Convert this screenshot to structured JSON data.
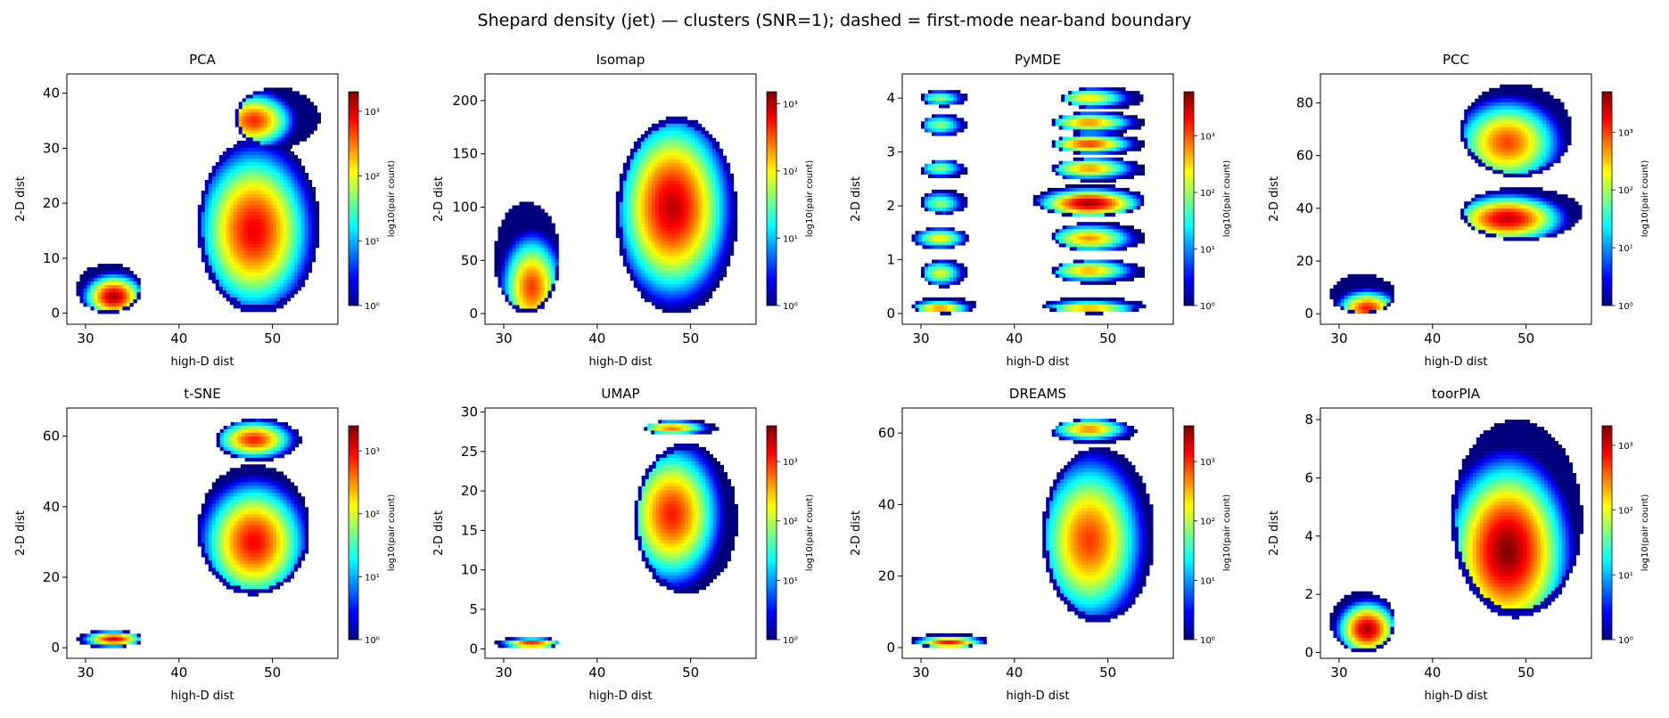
{
  "figure": {
    "suptitle": "Shepard density (jet) — clusters (SNR=1); dashed = first-mode near-band boundary"
  },
  "colormap": {
    "name": "jet",
    "stops": [
      "#00007f",
      "#0000ff",
      "#007fff",
      "#00ffff",
      "#7fff7f",
      "#ffff00",
      "#ff7f00",
      "#ff0000",
      "#7f0000"
    ]
  },
  "chart_data": [
    {
      "type": "heatmap",
      "title": "PCA",
      "xlabel": "high-D dist",
      "ylabel": "2-D dist",
      "colorbar_label": "log10(pair count)",
      "color_scale": "log",
      "xlim": [
        28,
        57
      ],
      "xticks": [
        30,
        40,
        50
      ],
      "ylim": [
        -2,
        43.5
      ],
      "yticks": [
        0,
        10,
        20,
        30,
        40
      ],
      "cbar_max": 2000,
      "cbar_ticks": [
        {
          "label": "10⁰",
          "value": 1
        },
        {
          "label": "10¹",
          "value": 10
        },
        {
          "label": "10²",
          "value": 100
        },
        {
          "label": "10³",
          "value": 1000
        }
      ],
      "clusters": [
        {
          "x_range": [
            29,
            36
          ],
          "y_range": [
            0,
            9
          ],
          "peak": [
            33,
            3
          ],
          "peak_count": 1500
        },
        {
          "x_range": [
            42,
            55
          ],
          "y_range": [
            0,
            32
          ],
          "peak": [
            48,
            15
          ],
          "peak_count": 900
        },
        {
          "x_range": [
            46,
            55
          ],
          "y_range": [
            30,
            41
          ],
          "peak": [
            48,
            35
          ],
          "peak_count": 600
        }
      ]
    },
    {
      "type": "heatmap",
      "title": "Isomap",
      "xlabel": "high-D dist",
      "ylabel": "2-D dist",
      "colorbar_label": "log10(pair count)",
      "color_scale": "log",
      "xlim": [
        28,
        57
      ],
      "xticks": [
        30,
        40,
        50
      ],
      "ylim": [
        -10,
        225
      ],
      "yticks": [
        0,
        50,
        100,
        150,
        200
      ],
      "cbar_max": 1500,
      "cbar_ticks": [
        {
          "label": "10⁰",
          "value": 1
        },
        {
          "label": "10¹",
          "value": 10
        },
        {
          "label": "10²",
          "value": 100
        },
        {
          "label": "10³",
          "value": 1000
        }
      ],
      "clusters": [
        {
          "x_range": [
            29,
            36
          ],
          "y_range": [
            0,
            105
          ],
          "peak": [
            33,
            25
          ],
          "peak_count": 400
        },
        {
          "x_range": [
            42,
            55
          ],
          "y_range": [
            0,
            185
          ],
          "peak": [
            48,
            100
          ],
          "peak_count": 1000
        }
      ]
    },
    {
      "type": "heatmap",
      "title": "PyMDE",
      "xlabel": "high-D dist",
      "ylabel": "2-D dist",
      "colorbar_label": "log10(pair count)",
      "color_scale": "log",
      "xlim": [
        28,
        57
      ],
      "xticks": [
        30,
        40,
        50
      ],
      "ylim": [
        -0.2,
        4.45
      ],
      "yticks": [
        0,
        1,
        2,
        3,
        4
      ],
      "cbar_max": 6000,
      "cbar_ticks": [
        {
          "label": "10⁰",
          "value": 1
        },
        {
          "label": "10¹",
          "value": 10
        },
        {
          "label": "10²",
          "value": 100
        },
        {
          "label": "10³",
          "value": 1000
        }
      ],
      "clusters": [
        {
          "x_range": [
            29,
            36
          ],
          "y_range": [
            0,
            0.3
          ],
          "peak": [
            32,
            0.1
          ],
          "peak_count": 800
        },
        {
          "x_range": [
            30,
            35
          ],
          "y_range": [
            0.5,
            1.0
          ],
          "peak": [
            32,
            0.75
          ],
          "peak_count": 200
        },
        {
          "x_range": [
            29,
            35
          ],
          "y_range": [
            1.2,
            1.6
          ],
          "peak": [
            32,
            1.4
          ],
          "peak_count": 300
        },
        {
          "x_range": [
            30,
            35
          ],
          "y_range": [
            1.85,
            2.3
          ],
          "peak": [
            32,
            2.05
          ],
          "peak_count": 100
        },
        {
          "x_range": [
            30,
            35
          ],
          "y_range": [
            2.5,
            2.85
          ],
          "peak": [
            32,
            2.7
          ],
          "peak_count": 100
        },
        {
          "x_range": [
            30,
            35
          ],
          "y_range": [
            3.3,
            3.7
          ],
          "peak": [
            32,
            3.5
          ],
          "peak_count": 100
        },
        {
          "x_range": [
            30,
            35
          ],
          "y_range": [
            3.85,
            4.15
          ],
          "peak": [
            32,
            4.0
          ],
          "peak_count": 100
        },
        {
          "x_range": [
            43,
            54
          ],
          "y_range": [
            0,
            0.3
          ],
          "peak": [
            48,
            0.1
          ],
          "peak_count": 600
        },
        {
          "x_range": [
            44,
            54
          ],
          "y_range": [
            0.55,
            1.0
          ],
          "peak": [
            48,
            0.8
          ],
          "peak_count": 500
        },
        {
          "x_range": [
            44,
            54
          ],
          "y_range": [
            1.15,
            1.7
          ],
          "peak": [
            48,
            1.4
          ],
          "peak_count": 600
        },
        {
          "x_range": [
            42,
            54
          ],
          "y_range": [
            1.8,
            2.4
          ],
          "peak": [
            48,
            2.05
          ],
          "peak_count": 5000
        },
        {
          "x_range": [
            44,
            54
          ],
          "y_range": [
            2.45,
            2.9
          ],
          "peak": [
            48,
            2.7
          ],
          "peak_count": 600
        },
        {
          "x_range": [
            44,
            54
          ],
          "y_range": [
            2.95,
            3.35
          ],
          "peak": [
            48,
            3.15
          ],
          "peak_count": 1500
        },
        {
          "x_range": [
            44,
            54
          ],
          "y_range": [
            3.35,
            3.75
          ],
          "peak": [
            48,
            3.55
          ],
          "peak_count": 700
        },
        {
          "x_range": [
            45,
            54
          ],
          "y_range": [
            3.8,
            4.2
          ],
          "peak": [
            48,
            4.0
          ],
          "peak_count": 300
        }
      ]
    },
    {
      "type": "heatmap",
      "title": "PCC",
      "xlabel": "high-D dist",
      "ylabel": "2-D dist",
      "colorbar_label": "log10(pair count)",
      "color_scale": "log",
      "xlim": [
        28,
        57
      ],
      "xticks": [
        30,
        40,
        50
      ],
      "ylim": [
        -4,
        91
      ],
      "yticks": [
        0,
        20,
        40,
        60,
        80
      ],
      "cbar_max": 5000,
      "cbar_ticks": [
        {
          "label": "10⁰",
          "value": 1
        },
        {
          "label": "10¹",
          "value": 10
        },
        {
          "label": "10²",
          "value": 100
        },
        {
          "label": "10³",
          "value": 1000
        }
      ],
      "clusters": [
        {
          "x_range": [
            29,
            36
          ],
          "y_range": [
            0,
            15
          ],
          "peak": [
            33,
            2
          ],
          "peak_count": 1500
        },
        {
          "x_range": [
            43,
            56
          ],
          "y_range": [
            28,
            48
          ],
          "peak": [
            48,
            36
          ],
          "peak_count": 3000
        },
        {
          "x_range": [
            43,
            55
          ],
          "y_range": [
            52,
            87
          ],
          "peak": [
            48,
            65
          ],
          "peak_count": 1000
        }
      ]
    },
    {
      "type": "heatmap",
      "title": "t-SNE",
      "xlabel": "high-D dist",
      "ylabel": "2-D dist",
      "colorbar_label": "log10(pair count)",
      "color_scale": "log",
      "xlim": [
        28,
        57
      ],
      "xticks": [
        30,
        40,
        50
      ],
      "ylim": [
        -3,
        68
      ],
      "yticks": [
        0,
        20,
        40,
        60
      ],
      "cbar_max": 2500,
      "cbar_ticks": [
        {
          "label": "10⁰",
          "value": 1
        },
        {
          "label": "10¹",
          "value": 10
        },
        {
          "label": "10²",
          "value": 100
        },
        {
          "label": "10³",
          "value": 1000
        }
      ],
      "clusters": [
        {
          "x_range": [
            29,
            36
          ],
          "y_range": [
            0,
            5
          ],
          "peak": [
            33,
            2.5
          ],
          "peak_count": 1200
        },
        {
          "x_range": [
            42,
            54
          ],
          "y_range": [
            15,
            52
          ],
          "peak": [
            48,
            30
          ],
          "peak_count": 1000
        },
        {
          "x_range": [
            44,
            53
          ],
          "y_range": [
            53,
            65
          ],
          "peak": [
            48,
            59
          ],
          "peak_count": 800
        }
      ]
    },
    {
      "type": "heatmap",
      "title": "UMAP",
      "xlabel": "high-D dist",
      "ylabel": "2-D dist",
      "colorbar_label": "log10(pair count)",
      "color_scale": "log",
      "xlim": [
        28,
        57
      ],
      "xticks": [
        30,
        40,
        50
      ],
      "ylim": [
        -1.2,
        30.5
      ],
      "yticks": [
        0,
        5,
        10,
        15,
        20,
        25,
        30
      ],
      "cbar_max": 4000,
      "cbar_ticks": [
        {
          "label": "10⁰",
          "value": 1
        },
        {
          "label": "10¹",
          "value": 10
        },
        {
          "label": "10²",
          "value": 100
        },
        {
          "label": "10³",
          "value": 1000
        }
      ],
      "clusters": [
        {
          "x_range": [
            29,
            36
          ],
          "y_range": [
            0,
            1.5
          ],
          "peak": [
            33,
            0.7
          ],
          "peak_count": 1500
        },
        {
          "x_range": [
            44,
            55
          ],
          "y_range": [
            7,
            26
          ],
          "peak": [
            48,
            17
          ],
          "peak_count": 1200
        },
        {
          "x_range": [
            45,
            53
          ],
          "y_range": [
            27,
            29
          ],
          "peak": [
            48,
            28
          ],
          "peak_count": 600
        }
      ]
    },
    {
      "type": "heatmap",
      "title": "DREAMS",
      "xlabel": "high-D dist",
      "ylabel": "2-D dist",
      "colorbar_label": "log10(pair count)",
      "color_scale": "log",
      "xlim": [
        28,
        57
      ],
      "xticks": [
        30,
        40,
        50
      ],
      "ylim": [
        -3,
        67
      ],
      "yticks": [
        0,
        20,
        40,
        60
      ],
      "cbar_max": 4000,
      "cbar_ticks": [
        {
          "label": "10⁰",
          "value": 1
        },
        {
          "label": "10¹",
          "value": 10
        },
        {
          "label": "10²",
          "value": 100
        },
        {
          "label": "10³",
          "value": 1000
        }
      ],
      "clusters": [
        {
          "x_range": [
            29,
            37
          ],
          "y_range": [
            0,
            4
          ],
          "peak": [
            33,
            1.5
          ],
          "peak_count": 1500
        },
        {
          "x_range": [
            43,
            55
          ],
          "y_range": [
            7,
            56
          ],
          "peak": [
            48,
            30
          ],
          "peak_count": 900
        },
        {
          "x_range": [
            44,
            53
          ],
          "y_range": [
            57,
            64
          ],
          "peak": [
            48,
            61
          ],
          "peak_count": 500
        }
      ]
    },
    {
      "type": "heatmap",
      "title": "toorPIA",
      "xlabel": "high-D dist",
      "ylabel": "2-D dist",
      "colorbar_label": "log10(pair count)",
      "color_scale": "log",
      "xlim": [
        28,
        57
      ],
      "xticks": [
        30,
        40,
        50
      ],
      "ylim": [
        -0.2,
        8.4
      ],
      "yticks": [
        0,
        2,
        4,
        6,
        8
      ],
      "cbar_max": 2000,
      "cbar_ticks": [
        {
          "label": "10⁰",
          "value": 1
        },
        {
          "label": "10¹",
          "value": 10
        },
        {
          "label": "10²",
          "value": 100
        },
        {
          "label": "10³",
          "value": 1000
        }
      ],
      "clusters": [
        {
          "x_range": [
            29,
            36
          ],
          "y_range": [
            0,
            2.1
          ],
          "peak": [
            33,
            0.8
          ],
          "peak_count": 1500
        },
        {
          "x_range": [
            42,
            56
          ],
          "y_range": [
            1.2,
            8
          ],
          "peak": [
            48,
            3.5
          ],
          "peak_count": 2000
        }
      ]
    }
  ]
}
